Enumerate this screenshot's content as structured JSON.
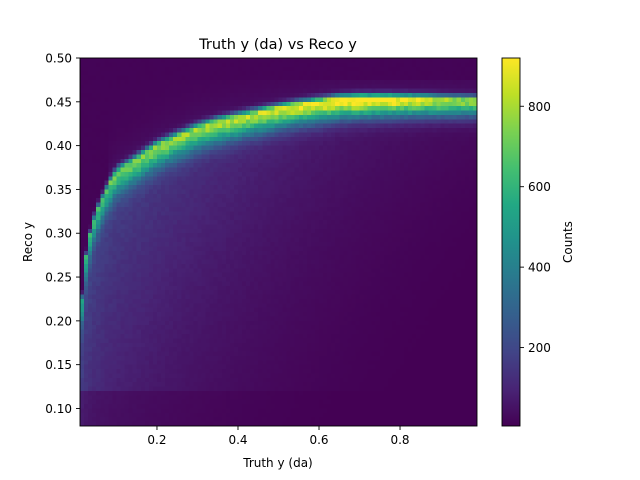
{
  "chart_data": {
    "type": "heatmap",
    "title": "Truth y (da) vs Reco y",
    "xlabel": "Truth y (da)",
    "ylabel": "Reco y",
    "xlim": [
      0.01,
      0.99
    ],
    "ylim": [
      0.08,
      0.5
    ],
    "x_ticks": [
      0.2,
      0.4,
      0.6,
      0.8
    ],
    "x_tick_labels": [
      "0.2",
      "0.4",
      "0.6",
      "0.8"
    ],
    "y_ticks": [
      0.1,
      0.15,
      0.2,
      0.25,
      0.3,
      0.35,
      0.4,
      0.45,
      0.5
    ],
    "y_tick_labels": [
      "0.10",
      "0.15",
      "0.20",
      "0.25",
      "0.30",
      "0.35",
      "0.40",
      "0.45",
      "0.50"
    ],
    "colormap": "viridis",
    "colorbar": {
      "label": "Counts",
      "min": 5,
      "max": 920,
      "ticks": [
        200,
        400,
        600,
        800
      ],
      "tick_labels": [
        "200",
        "400",
        "600",
        "800"
      ]
    },
    "ridge_points": [
      [
        0.01,
        0.19
      ],
      [
        0.02,
        0.26
      ],
      [
        0.04,
        0.31
      ],
      [
        0.06,
        0.335
      ],
      [
        0.08,
        0.355
      ],
      [
        0.1,
        0.37
      ],
      [
        0.15,
        0.385
      ],
      [
        0.2,
        0.4
      ],
      [
        0.25,
        0.41
      ],
      [
        0.3,
        0.42
      ],
      [
        0.35,
        0.427
      ],
      [
        0.4,
        0.432
      ],
      [
        0.45,
        0.437
      ],
      [
        0.5,
        0.442
      ],
      [
        0.55,
        0.446
      ],
      [
        0.6,
        0.449
      ],
      [
        0.65,
        0.452
      ],
      [
        0.7,
        0.453
      ],
      [
        0.8,
        0.453
      ],
      [
        0.9,
        0.452
      ],
      [
        0.99,
        0.451
      ]
    ],
    "ridge_peak_counts": [
      [
        0.01,
        340
      ],
      [
        0.1,
        520
      ],
      [
        0.2,
        600
      ],
      [
        0.3,
        650
      ],
      [
        0.4,
        700
      ],
      [
        0.5,
        760
      ],
      [
        0.6,
        840
      ],
      [
        0.7,
        920
      ],
      [
        0.8,
        860
      ],
      [
        0.9,
        760
      ],
      [
        0.99,
        700
      ]
    ],
    "band_upper_y": 0.475,
    "bin_count_x": 98,
    "bin_count_y": 84
  }
}
